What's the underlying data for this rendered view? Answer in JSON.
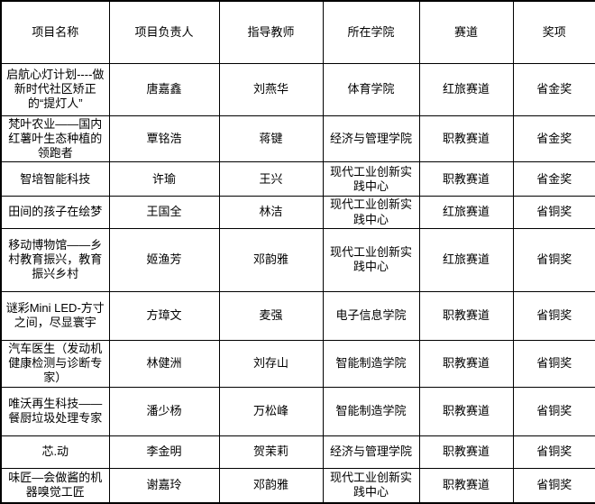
{
  "colors": {
    "border": "#000000",
    "background": "#ffffff",
    "text": "#000000"
  },
  "table": {
    "headers": [
      "项目名称",
      "项目负责人",
      "指导教师",
      "所在学院",
      "赛道",
      "奖项"
    ],
    "column_keys": [
      "name",
      "leader",
      "teacher",
      "college",
      "track",
      "award"
    ],
    "rows": [
      {
        "name": "启航心灯计划----做新时代社区矫正的“提灯人”",
        "leader": "唐嘉鑫",
        "teacher": "刘燕华",
        "college": "体育学院",
        "track": "红旅赛道",
        "award": "省金奖"
      },
      {
        "name": "梵叶农业——国内红薯叶生态种植的领跑者",
        "leader": "覃铭浩",
        "teacher": "蒋键",
        "college": "经济与管理学院",
        "track": "职教赛道",
        "award": "省金奖"
      },
      {
        "name": "智培智能科技",
        "leader": "许瑜",
        "teacher": "王兴",
        "college": "现代工业创新实践中心",
        "track": "职教赛道",
        "award": "省金奖"
      },
      {
        "name": "田间的孩子在绘梦",
        "leader": "王国全",
        "teacher": "林洁",
        "college": "现代工业创新实践中心",
        "track": "红旅赛道",
        "award": "省铜奖"
      },
      {
        "name": "移动博物馆——乡村教育振兴，教育振兴乡村",
        "leader": "姬渔芳",
        "teacher": "邓韵雅",
        "college": "现代工业创新实践中心",
        "track": "红旅赛道",
        "award": "省铜奖"
      },
      {
        "name": "谜彩Mini LED-方寸之间，尽显寰宇",
        "leader": "方璋文",
        "teacher": "麦强",
        "college": "电子信息学院",
        "track": "职教赛道",
        "award": "省铜奖"
      },
      {
        "name": "汽车医生（发动机健康检测与诊断专家）",
        "leader": "林健洲",
        "teacher": "刘存山",
        "college": "智能制造学院",
        "track": "职教赛道",
        "award": "省铜奖"
      },
      {
        "name": "唯沃再生科技——餐厨垃圾处理专家",
        "leader": "潘少杨",
        "teacher": "万松峰",
        "college": "智能制造学院",
        "track": "职教赛道",
        "award": "省铜奖"
      },
      {
        "name": "芯.动",
        "leader": "李金明",
        "teacher": "贺茉莉",
        "college": "经济与管理学院",
        "track": "职教赛道",
        "award": "省铜奖"
      },
      {
        "name": "味匠—会做酱的机器嗅觉工匠",
        "leader": "谢嘉玲",
        "teacher": "邓韵雅",
        "college": "现代工业创新实践中心",
        "track": "职教赛道",
        "award": "省铜奖"
      }
    ]
  }
}
